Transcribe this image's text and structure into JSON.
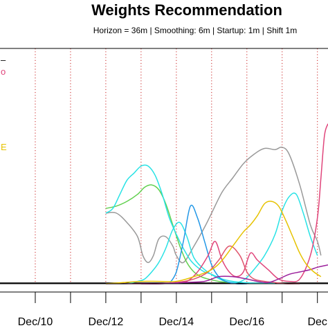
{
  "chart_data": {
    "type": "line",
    "title": "Weights Recommendation",
    "subtitle": "Horizon =  36m | Smoothing: 6m | Startup: 1m | Shift 1m",
    "xlabel": "",
    "ylabel": "",
    "x_tick_labels": [
      "Dec/10",
      "Dec/12",
      "Dec/14",
      "Dec/16",
      "Dec"
    ],
    "x_tick_positions": [
      2011.0,
      2013.0,
      2015.0,
      2017.0,
      2019.0
    ],
    "xlim": [
      2010.0,
      2019.3
    ],
    "ylim": [
      0,
      1.0
    ],
    "annual_lines": [
      2011.0,
      2012.0,
      2013.0,
      2014.0,
      2015.0,
      2016.0,
      2017.0,
      2018.0,
      2019.0
    ],
    "grid": false,
    "legend_fragments": [
      {
        "text": "–",
        "color": "#000000",
        "y": 0.95
      },
      {
        "text": "o",
        "color": "#e0457b",
        "y": 0.9
      },
      {
        "text": "E",
        "color": "#e6c200",
        "y": 0.58
      }
    ],
    "series": [
      {
        "color": "#000000",
        "x": [
          2010.0,
          2011.0,
          2012.0,
          2013.0,
          2014.0,
          2015.0,
          2016.0,
          2017.0,
          2018.0,
          2019.0,
          2019.3
        ],
        "values": [
          0.003,
          0.003,
          0.003,
          0.003,
          0.003,
          0.003,
          0.003,
          0.003,
          0.003,
          0.003,
          0.003
        ]
      },
      {
        "color": "#999999",
        "x": [
          2013.0,
          2013.3,
          2013.6,
          2013.9,
          2014.05,
          2014.2,
          2014.35,
          2014.5,
          2014.7,
          2014.9,
          2015.0,
          2015.2,
          2015.5,
          2015.8,
          2016.0,
          2016.3,
          2016.6,
          2016.9,
          2017.2,
          2017.5,
          2017.8,
          2018.0,
          2018.2,
          2018.5,
          2018.8,
          2019.0,
          2019.1
        ],
        "values": [
          0.3,
          0.3,
          0.26,
          0.2,
          0.12,
          0.09,
          0.12,
          0.19,
          0.2,
          0.16,
          0.12,
          0.09,
          0.16,
          0.24,
          0.3,
          0.39,
          0.45,
          0.51,
          0.55,
          0.575,
          0.57,
          0.58,
          0.55,
          0.42,
          0.25,
          0.18,
          0.12
        ]
      },
      {
        "color": "#61d04f",
        "x": [
          2013.0,
          2013.3,
          2013.6,
          2013.9,
          2014.1,
          2014.3,
          2014.5,
          2014.7,
          2014.9,
          2015.1,
          2015.3,
          2015.5,
          2015.7,
          2015.9,
          2016.2,
          2016.5
        ],
        "values": [
          0.32,
          0.33,
          0.35,
          0.38,
          0.41,
          0.42,
          0.4,
          0.34,
          0.25,
          0.16,
          0.09,
          0.05,
          0.03,
          0.02,
          0.01,
          0.005
        ]
      },
      {
        "color": "#28e2e5",
        "x": [
          2013.0,
          2013.3,
          2013.6,
          2013.9,
          2014.1,
          2014.3,
          2014.5,
          2014.7,
          2014.9,
          2015.1,
          2015.3,
          2015.5,
          2015.8,
          2016.1,
          2016.4,
          2016.7,
          2016.95,
          2017.2,
          2017.5,
          2017.8,
          2018.0,
          2018.2,
          2018.4,
          2018.6,
          2018.8,
          2019.0
        ],
        "values": [
          0.0,
          0.0,
          0.0,
          0.01,
          0.02,
          0.05,
          0.09,
          0.15,
          0.23,
          0.26,
          0.2,
          0.11,
          0.06,
          0.03,
          0.01,
          0.005,
          0.02,
          0.06,
          0.12,
          0.21,
          0.31,
          0.37,
          0.38,
          0.3,
          0.2,
          0.12
        ]
      },
      {
        "color": "#28e2e5",
        "x": [
          2013.0,
          2013.2,
          2013.4,
          2013.6,
          2013.8,
          2014.0,
          2014.2,
          2014.4,
          2014.6,
          2014.8,
          2015.0,
          2015.2,
          2015.4,
          2015.6,
          2015.8,
          2016.0,
          2016.3,
          2016.6,
          2016.9,
          2017.2,
          2017.5,
          2017.8
        ],
        "values": [
          0.3,
          0.32,
          0.38,
          0.44,
          0.47,
          0.5,
          0.5,
          0.46,
          0.38,
          0.28,
          0.21,
          0.15,
          0.1,
          0.07,
          0.05,
          0.04,
          0.02,
          0.01,
          0.005,
          0.003,
          0.002,
          0.002
        ]
      },
      {
        "color": "#2297e6",
        "x": [
          2014.8,
          2015.0,
          2015.2,
          2015.4,
          2015.6,
          2015.8,
          2016.0,
          2016.2,
          2016.4,
          2016.7,
          2017.0
        ],
        "values": [
          0.0,
          0.05,
          0.18,
          0.33,
          0.28,
          0.18,
          0.08,
          0.03,
          0.01,
          0.0,
          0.0
        ]
      },
      {
        "color": "#e0457b",
        "x": [
          2013.0,
          2014.0,
          2014.5,
          2015.0,
          2015.3,
          2015.6,
          2015.9,
          2016.1,
          2016.3,
          2016.5,
          2016.7,
          2016.9,
          2017.1,
          2017.3,
          2017.6,
          2017.9,
          2018.2,
          2018.5,
          2018.8,
          2019.0,
          2019.1,
          2019.2,
          2019.3
        ],
        "values": [
          0.0,
          0.0,
          0.0,
          0.005,
          0.01,
          0.05,
          0.12,
          0.18,
          0.1,
          0.05,
          0.03,
          0.05,
          0.13,
          0.1,
          0.06,
          0.02,
          0.01,
          0.02,
          0.12,
          0.28,
          0.45,
          0.63,
          0.68
        ]
      },
      {
        "color": "#df536b",
        "x": [
          2014.0,
          2014.5,
          2015.0,
          2015.5,
          2015.9,
          2016.2,
          2016.5,
          2016.8,
          2017.0,
          2017.2,
          2017.5,
          2017.8,
          2018.1,
          2018.5
        ],
        "values": [
          0.0,
          0.0,
          0.005,
          0.02,
          0.05,
          0.1,
          0.16,
          0.12,
          0.05,
          0.02,
          0.01,
          0.005,
          0.0,
          0.0
        ]
      },
      {
        "color": "#9b1f9b",
        "x": [
          2014.0,
          2014.6,
          2015.2,
          2015.8,
          2016.2,
          2016.6,
          2017.0,
          2017.3,
          2017.6,
          2017.9,
          2018.2,
          2018.5,
          2018.8,
          2019.0,
          2019.3
        ],
        "values": [
          0.0,
          0.0,
          0.005,
          0.01,
          0.03,
          0.03,
          0.02,
          0.01,
          0.005,
          0.02,
          0.04,
          0.05,
          0.06,
          0.07,
          0.08
        ]
      },
      {
        "color": "#e6c200",
        "x": [
          2013.0,
          2013.5,
          2014.0,
          2014.5,
          2015.0,
          2015.5,
          2016.0,
          2016.3,
          2016.6,
          2016.9,
          2017.1,
          2017.3,
          2017.5,
          2017.7,
          2017.9,
          2018.1,
          2018.3,
          2018.5,
          2018.7,
          2018.9,
          2019.1
        ],
        "values": [
          0.0,
          0.005,
          0.01,
          0.01,
          0.01,
          0.03,
          0.06,
          0.1,
          0.16,
          0.22,
          0.25,
          0.29,
          0.34,
          0.35,
          0.33,
          0.27,
          0.2,
          0.13,
          0.08,
          0.05,
          0.03
        ]
      }
    ]
  }
}
